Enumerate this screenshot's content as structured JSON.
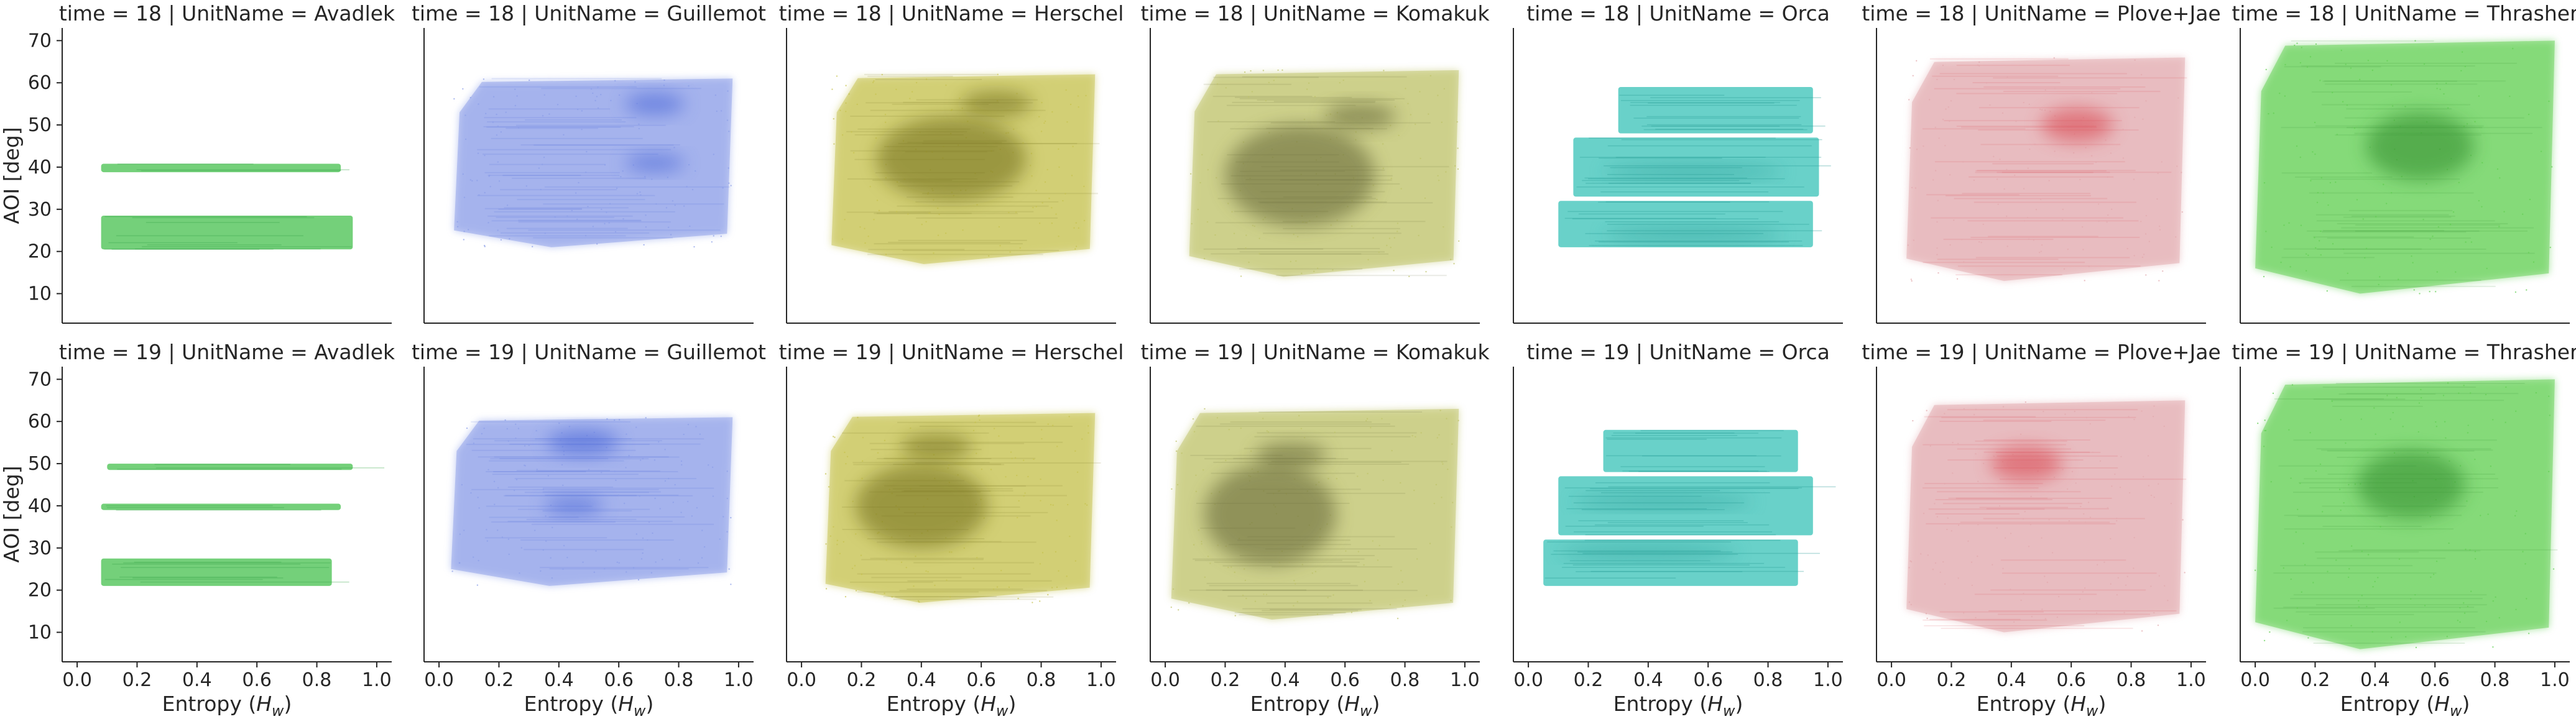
{
  "chart_data": {
    "type": "heatmap",
    "layout": "facet-grid",
    "row_variable": "time",
    "col_variable": "UnitName",
    "rows": [
      18,
      19
    ],
    "cols": [
      "Avadlek",
      "Guillemot",
      "Herschel",
      "Komakuk",
      "Orca",
      "Plove+Jae",
      "Thrasher"
    ],
    "facet_title_template": "{row_var} = {row} | {col_var} = {col}",
    "xlabel": "Entropy",
    "xlabel_symbol": "H",
    "xlabel_subscript": "w",
    "ylabel": "AOI [deg]",
    "xlim": [
      -0.05,
      1.05
    ],
    "ylim": [
      3,
      73
    ],
    "xticks": [
      0.0,
      0.2,
      0.4,
      0.6,
      0.8,
      1.0
    ],
    "xtick_labels": [
      "0.0",
      "0.2",
      "0.4",
      "0.6",
      "0.8",
      "1.0"
    ],
    "yticks": [
      10,
      20,
      30,
      40,
      50,
      60,
      70
    ],
    "ytick_labels": [
      "10",
      "20",
      "30",
      "40",
      "50",
      "60",
      "70"
    ],
    "grid": false,
    "colors": {
      "Avadlek": "#5cc863",
      "Guillemot": "#8b9ee8",
      "Herschel": "#c6c24e",
      "Komakuk": "#bfc36a",
      "Orca": "#4fc9c0",
      "Plove+Jae": "#e2a9ae",
      "Thrasher": "#62cf52"
    },
    "hot_colors": {
      "Avadlek": "#3aa84a",
      "Guillemot": "#3f5fd6",
      "Herschel": "#6e6a18",
      "Komakuk": "#5e6030",
      "Orca": "#2a9e98",
      "Plove+Jae": "#d9404a",
      "Thrasher": "#2f8a2c"
    },
    "panels": [
      {
        "time": 18,
        "unit": "Avadlek",
        "kind": "bands",
        "bands": [
          {
            "x": [
              0.08,
              0.92
            ],
            "y": [
              20.5,
              28.5
            ]
          },
          {
            "x": [
              0.08,
              0.88
            ],
            "y": [
              38.8,
              40.8
            ]
          }
        ],
        "hot": []
      },
      {
        "time": 18,
        "unit": "Guillemot",
        "kind": "region",
        "x": [
          0.05,
          0.98
        ],
        "y": [
          21,
          61
        ],
        "lanes": [
          0.8,
          0.9,
          1.0,
          0.95
        ],
        "hot": [
          {
            "x": 0.72,
            "y": 55,
            "rx": 0.1,
            "ry": 2.5
          },
          {
            "x": 0.72,
            "y": 41,
            "rx": 0.1,
            "ry": 2
          }
        ]
      },
      {
        "time": 18,
        "unit": "Herschel",
        "kind": "region",
        "x": [
          0.1,
          0.98
        ],
        "y": [
          17,
          62
        ],
        "lanes": [
          0.7,
          0.9,
          1.0,
          0.95
        ],
        "hot": [
          {
            "x": 0.65,
            "y": 55,
            "rx": 0.12,
            "ry": 3
          },
          {
            "x": 0.5,
            "y": 42,
            "rx": 0.25,
            "ry": 10
          }
        ]
      },
      {
        "time": 18,
        "unit": "Komakuk",
        "kind": "region",
        "x": [
          0.08,
          0.98
        ],
        "y": [
          14,
          63
        ],
        "lanes": [
          0.6,
          0.85,
          1.0,
          0.95
        ],
        "hot": [
          {
            "x": 0.65,
            "y": 52,
            "rx": 0.12,
            "ry": 3
          },
          {
            "x": 0.45,
            "y": 38,
            "rx": 0.25,
            "ry": 12
          }
        ]
      },
      {
        "time": 18,
        "unit": "Orca",
        "kind": "bands",
        "bands": [
          {
            "x": [
              0.1,
              0.95
            ],
            "y": [
              21,
              32
            ]
          },
          {
            "x": [
              0.15,
              0.97
            ],
            "y": [
              33,
              47
            ]
          },
          {
            "x": [
              0.3,
              0.95
            ],
            "y": [
              48,
              59
            ]
          }
        ],
        "hot": [
          {
            "x": 0.55,
            "y": 39,
            "rx": 0.3,
            "ry": 1.5
          },
          {
            "x": 0.55,
            "y": 24,
            "rx": 0.3,
            "ry": 1.5
          }
        ]
      },
      {
        "time": 18,
        "unit": "Plove+Jae",
        "kind": "region",
        "x": [
          0.05,
          0.98
        ],
        "y": [
          13,
          66
        ],
        "lanes": [
          0.55,
          0.85,
          1.0,
          0.9
        ],
        "hot": [
          {
            "x": 0.62,
            "y": 50,
            "rx": 0.12,
            "ry": 4
          }
        ]
      },
      {
        "time": 18,
        "unit": "Thrasher",
        "kind": "region",
        "x": [
          0.0,
          1.0
        ],
        "y": [
          10,
          70
        ],
        "lanes": [
          1.0,
          1.0,
          1.0,
          1.0
        ],
        "hot": [
          {
            "x": 0.55,
            "y": 45,
            "rx": 0.18,
            "ry": 8
          }
        ]
      },
      {
        "time": 19,
        "unit": "Avadlek",
        "kind": "bands",
        "bands": [
          {
            "x": [
              0.08,
              0.85
            ],
            "y": [
              21,
              27.5
            ]
          },
          {
            "x": [
              0.08,
              0.88
            ],
            "y": [
              39,
              40.5
            ]
          },
          {
            "x": [
              0.1,
              0.92
            ],
            "y": [
              48.5,
              50
            ]
          }
        ],
        "hot": []
      },
      {
        "time": 19,
        "unit": "Guillemot",
        "kind": "region",
        "x": [
          0.04,
          0.98
        ],
        "y": [
          21,
          61
        ],
        "lanes": [
          0.7,
          0.9,
          1.0,
          0.95
        ],
        "hot": [
          {
            "x": 0.48,
            "y": 55,
            "rx": 0.12,
            "ry": 3
          },
          {
            "x": 0.45,
            "y": 40,
            "rx": 0.1,
            "ry": 2
          }
        ]
      },
      {
        "time": 19,
        "unit": "Herschel",
        "kind": "region",
        "x": [
          0.08,
          0.98
        ],
        "y": [
          17,
          62
        ],
        "lanes": [
          0.6,
          0.85,
          1.0,
          0.95
        ],
        "hot": [
          {
            "x": 0.45,
            "y": 54,
            "rx": 0.12,
            "ry": 3
          },
          {
            "x": 0.4,
            "y": 40,
            "rx": 0.22,
            "ry": 10
          }
        ]
      },
      {
        "time": 19,
        "unit": "Komakuk",
        "kind": "region",
        "x": [
          0.02,
          0.98
        ],
        "y": [
          13,
          63
        ],
        "lanes": [
          0.5,
          0.85,
          1.0,
          0.95
        ],
        "hot": [
          {
            "x": 0.42,
            "y": 52,
            "rx": 0.12,
            "ry": 3
          },
          {
            "x": 0.35,
            "y": 38,
            "rx": 0.22,
            "ry": 12
          }
        ]
      },
      {
        "time": 19,
        "unit": "Orca",
        "kind": "bands",
        "bands": [
          {
            "x": [
              0.05,
              0.9
            ],
            "y": [
              21,
              32
            ]
          },
          {
            "x": [
              0.1,
              0.95
            ],
            "y": [
              33,
              47
            ]
          },
          {
            "x": [
              0.25,
              0.9
            ],
            "y": [
              48,
              58
            ]
          }
        ],
        "hot": [
          {
            "x": 0.4,
            "y": 29,
            "rx": 0.3,
            "ry": 1.5
          },
          {
            "x": 0.45,
            "y": 41,
            "rx": 0.3,
            "ry": 1.5
          }
        ]
      },
      {
        "time": 19,
        "unit": "Plove+Jae",
        "kind": "region",
        "x": [
          0.05,
          0.98
        ],
        "y": [
          10,
          65
        ],
        "lanes": [
          0.5,
          0.85,
          1.0,
          0.9
        ],
        "hot": [
          {
            "x": 0.45,
            "y": 50,
            "rx": 0.12,
            "ry": 4
          }
        ]
      },
      {
        "time": 19,
        "unit": "Thrasher",
        "kind": "region",
        "x": [
          0.0,
          1.0
        ],
        "y": [
          6,
          70
        ],
        "lanes": [
          1.0,
          1.0,
          1.0,
          1.0
        ],
        "hot": [
          {
            "x": 0.52,
            "y": 45,
            "rx": 0.18,
            "ry": 8
          }
        ]
      }
    ]
  }
}
